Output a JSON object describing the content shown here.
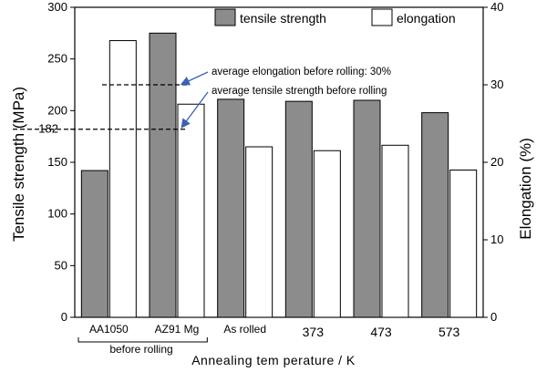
{
  "chart_data": {
    "type": "bar",
    "xlabel": "Annealing tem perature / K",
    "ylabel_left": "Tensile strength (MPa)",
    "ylabel_right": "Elongation (%)",
    "ylim_left": [
      0,
      300
    ],
    "ylim_right": [
      0,
      40
    ],
    "yticks_left": [
      "0",
      "50",
      "100",
      "150",
      "200",
      "250",
      "300"
    ],
    "yticks_right": [
      "0",
      "10",
      "20",
      "30",
      "40"
    ],
    "extra_left_tick": "182",
    "extra_left_tick_value": 182,
    "categories": [
      "AA1050",
      "AZ91 Mg",
      "As rolled",
      "373",
      "473",
      "573"
    ],
    "group_label": "before rolling",
    "legend": {
      "position": "top-right",
      "tensile": "tensile strength",
      "elongation": "elongation"
    },
    "series": [
      {
        "name": "tensile strength",
        "axis": "left",
        "color": "#8c8c8c",
        "values": [
          142,
          275,
          211,
          209,
          210,
          198
        ]
      },
      {
        "name": "elongation",
        "axis": "right",
        "color": "#ffffff",
        "values": [
          35.7,
          27.5,
          22.0,
          21.5,
          22.2,
          19.0
        ]
      }
    ],
    "annotations": {
      "elongation_avg": {
        "text": "average elongation  before rolling: 30%",
        "value": 30
      },
      "tensile_avg": {
        "text": "average tensile strength before rolling",
        "value": 182
      }
    }
  }
}
